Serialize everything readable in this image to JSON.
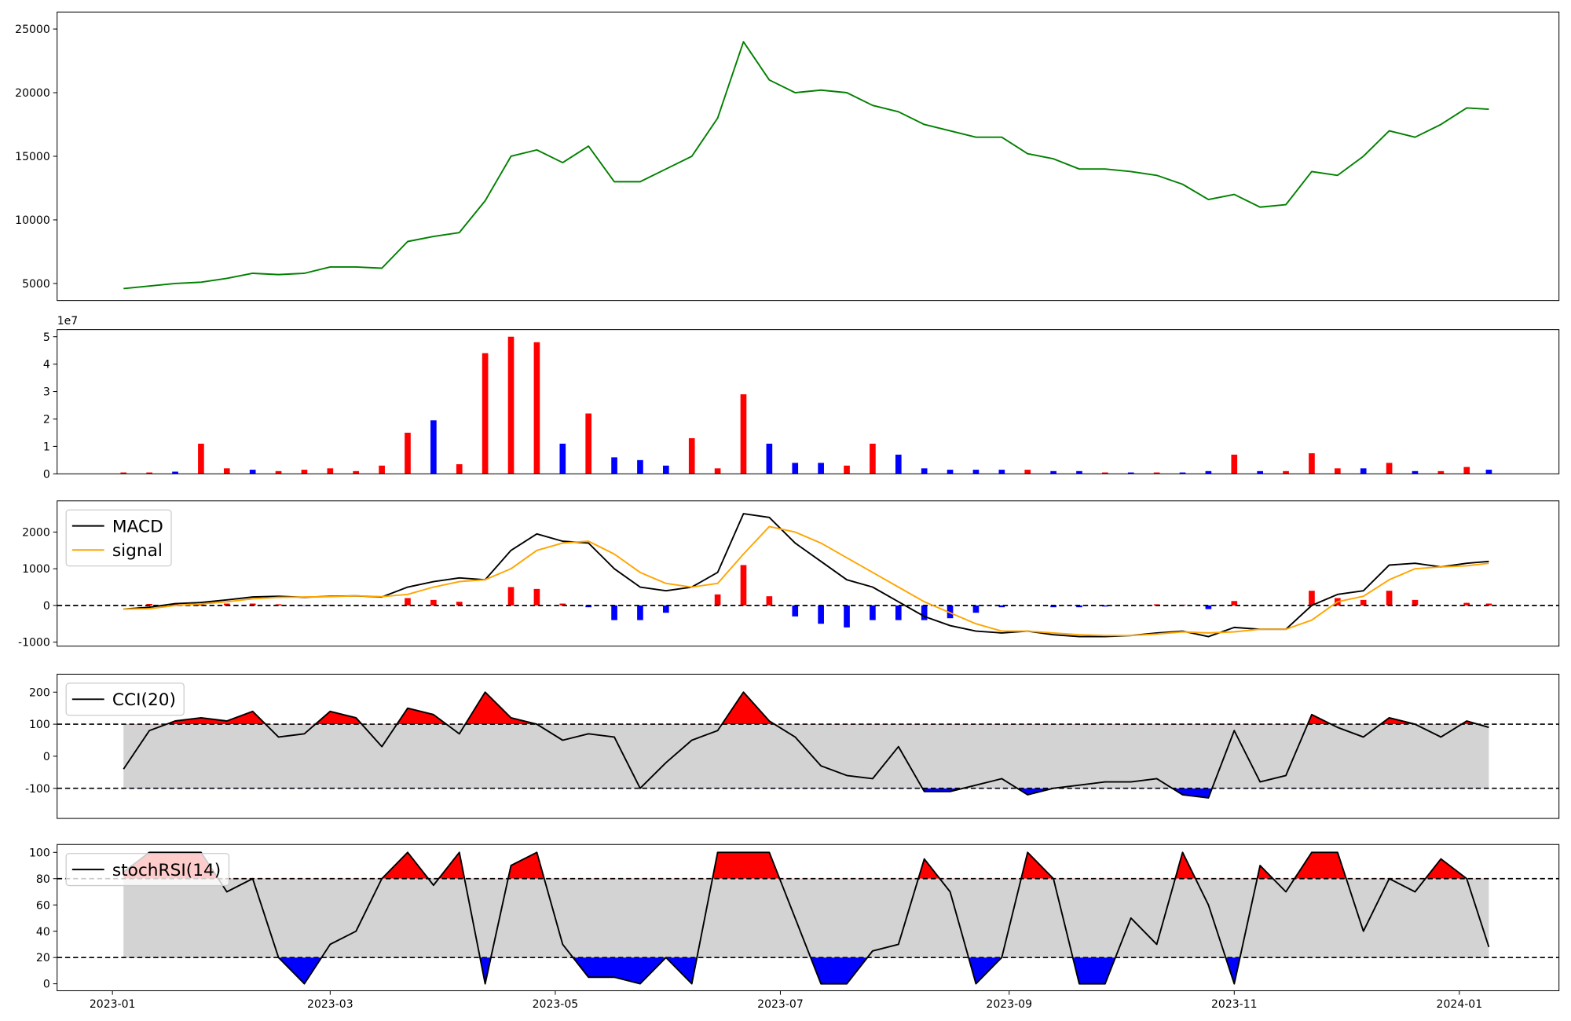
{
  "chart_data": [
    {
      "type": "line",
      "x": [
        3,
        10,
        17,
        24,
        31,
        38,
        45,
        52,
        59,
        66,
        73,
        80,
        87,
        94,
        101,
        108,
        115,
        122,
        129,
        136,
        143,
        150,
        157,
        164,
        171,
        178,
        185,
        192,
        199,
        206,
        213,
        220,
        227,
        234,
        241,
        248,
        255,
        262,
        269,
        276,
        283,
        290,
        297,
        304,
        311,
        318,
        325,
        332,
        339,
        346,
        353,
        360,
        367,
        373
      ],
      "series": [
        {
          "color": "#008000",
          "values": [
            4600,
            4800,
            5000,
            5100,
            5400,
            5800,
            5700,
            5800,
            6300,
            6300,
            6200,
            8300,
            8700,
            9000,
            11500,
            15000,
            15500,
            14500,
            15800,
            13000,
            13000,
            14000,
            15000,
            18000,
            24000,
            21000,
            20000,
            20200,
            20000,
            19000,
            18500,
            17500,
            17000,
            16500,
            16500,
            15200,
            14800,
            14000,
            14000,
            13800,
            13500,
            12800,
            11600,
            12000,
            11000,
            11200,
            13800,
            13500,
            15000,
            17000,
            16500,
            17500,
            18800,
            18700
          ]
        }
      ],
      "xlim": [
        -15,
        392
      ],
      "ylim": [
        3660,
        26340
      ],
      "yticks": [
        5000,
        10000,
        15000,
        20000,
        25000
      ]
    },
    {
      "type": "bar",
      "x": [
        3,
        10,
        17,
        24,
        31,
        38,
        45,
        52,
        59,
        66,
        73,
        80,
        87,
        94,
        101,
        108,
        115,
        122,
        129,
        136,
        143,
        150,
        157,
        164,
        171,
        178,
        185,
        192,
        199,
        206,
        213,
        220,
        227,
        234,
        241,
        248,
        255,
        262,
        269,
        276,
        283,
        290,
        297,
        304,
        311,
        318,
        325,
        332,
        339,
        346,
        353,
        360,
        367,
        373
      ],
      "values": [
        0.05,
        0.05,
        0.08,
        1.1,
        0.2,
        0.15,
        0.1,
        0.15,
        0.2,
        0.1,
        0.3,
        1.5,
        1.95,
        0.35,
        4.4,
        5.0,
        4.8,
        1.1,
        2.2,
        0.6,
        0.5,
        0.3,
        1.3,
        0.2,
        2.9,
        1.1,
        0.4,
        0.4,
        0.3,
        1.1,
        0.7,
        0.2,
        0.15,
        0.15,
        0.15,
        0.15,
        0.1,
        0.1,
        0.05,
        0.05,
        0.05,
        0.05,
        0.1,
        0.7,
        0.1,
        0.1,
        0.75,
        0.2,
        0.2,
        0.4,
        0.1,
        0.1,
        0.25,
        0.15
      ],
      "colors": [
        "#ff0000",
        "#ff0000",
        "#0000ff",
        "#ff0000",
        "#ff0000",
        "#0000ff",
        "#ff0000",
        "#ff0000",
        "#ff0000",
        "#ff0000",
        "#ff0000",
        "#ff0000",
        "#0000ff",
        "#ff0000",
        "#ff0000",
        "#ff0000",
        "#ff0000",
        "#0000ff",
        "#ff0000",
        "#0000ff",
        "#0000ff",
        "#0000ff",
        "#ff0000",
        "#ff0000",
        "#ff0000",
        "#0000ff",
        "#0000ff",
        "#0000ff",
        "#ff0000",
        "#ff0000",
        "#0000ff",
        "#0000ff",
        "#0000ff",
        "#0000ff",
        "#0000ff",
        "#ff0000",
        "#0000ff",
        "#0000ff",
        "#ff0000",
        "#0000ff",
        "#ff0000",
        "#0000ff",
        "#0000ff",
        "#ff0000",
        "#0000ff",
        "#ff0000",
        "#ff0000",
        "#ff0000",
        "#0000ff",
        "#ff0000",
        "#0000ff",
        "#ff0000",
        "#ff0000",
        "#0000ff"
      ],
      "offset_label": "1e7",
      "xlim": [
        -15,
        392
      ],
      "ylim": [
        0,
        5.26
      ],
      "yticks": [
        0,
        1,
        2,
        3,
        4,
        5
      ]
    },
    {
      "type": "macd",
      "x": [
        3,
        10,
        17,
        24,
        31,
        38,
        45,
        52,
        59,
        66,
        73,
        80,
        87,
        94,
        101,
        108,
        115,
        122,
        129,
        136,
        143,
        150,
        157,
        164,
        171,
        178,
        185,
        192,
        199,
        206,
        213,
        220,
        227,
        234,
        241,
        248,
        255,
        262,
        269,
        276,
        283,
        290,
        297,
        304,
        311,
        318,
        325,
        332,
        339,
        346,
        353,
        360,
        367,
        373
      ],
      "series": [
        {
          "name": "MACD",
          "color": "#000000",
          "values": [
            -100,
            -50,
            50,
            80,
            150,
            230,
            250,
            220,
            250,
            260,
            230,
            500,
            650,
            750,
            700,
            1500,
            1950,
            1750,
            1700,
            1000,
            500,
            400,
            500,
            900,
            2500,
            2400,
            1700,
            1200,
            700,
            500,
            100,
            -300,
            -550,
            -700,
            -750,
            -700,
            -800,
            -850,
            -850,
            -820,
            -750,
            -700,
            -850,
            -600,
            -650,
            -650,
            0,
            300,
            400,
            1100,
            1150,
            1050,
            1150,
            1200
          ]
        },
        {
          "name": "signal",
          "color": "#ffa500",
          "values": [
            -100,
            -90,
            0,
            40,
            100,
            180,
            220,
            230,
            240,
            260,
            240,
            300,
            500,
            650,
            700,
            1000,
            1500,
            1700,
            1750,
            1400,
            900,
            600,
            500,
            600,
            1400,
            2150,
            2000,
            1700,
            1300,
            900,
            500,
            100,
            -200,
            -500,
            -700,
            -700,
            -750,
            -800,
            -820,
            -820,
            -780,
            -720,
            -750,
            -720,
            -650,
            -650,
            -400,
            100,
            250,
            700,
            1000,
            1050,
            1080,
            1150
          ]
        }
      ],
      "histogram": {
        "values": [
          0,
          40,
          50,
          40,
          50,
          50,
          30,
          -10,
          10,
          0,
          -10,
          200,
          150,
          100,
          0,
          500,
          450,
          50,
          -50,
          -400,
          -400,
          -200,
          0,
          300,
          1100,
          250,
          -300,
          -500,
          -600,
          -400,
          -400,
          -400,
          -350,
          -200,
          -50,
          0,
          -50,
          -50,
          -30,
          0,
          30,
          20,
          -100,
          120,
          0,
          0,
          400,
          200,
          150,
          400,
          150,
          0,
          70,
          50
        ],
        "up_color": "#ff0000",
        "down_color": "#0000ff"
      },
      "hlines": [
        0
      ],
      "legend": "upper left",
      "xlim": [
        -15,
        392
      ],
      "ylim": [
        -1110,
        2850
      ],
      "yticks": [
        -1000,
        0,
        1000,
        2000
      ]
    },
    {
      "type": "oscillator",
      "x": [
        3,
        10,
        17,
        24,
        31,
        38,
        45,
        52,
        59,
        66,
        73,
        80,
        87,
        94,
        101,
        108,
        115,
        122,
        129,
        136,
        143,
        150,
        157,
        164,
        171,
        178,
        185,
        192,
        199,
        206,
        213,
        220,
        227,
        234,
        241,
        248,
        255,
        262,
        269,
        276,
        283,
        290,
        297,
        304,
        311,
        318,
        325,
        332,
        339,
        346,
        353,
        360,
        367,
        373
      ],
      "series": [
        {
          "name": "CCI(20)",
          "color": "#000000",
          "values": [
            -40,
            80,
            110,
            120,
            110,
            140,
            60,
            70,
            140,
            120,
            30,
            150,
            130,
            70,
            200,
            120,
            100,
            50,
            70,
            60,
            -100,
            -20,
            50,
            80,
            200,
            110,
            60,
            -30,
            -60,
            -70,
            30,
            -110,
            -110,
            -90,
            -70,
            -120,
            -100,
            -90,
            -80,
            -80,
            -70,
            -120,
            -130,
            80,
            -80,
            -60,
            130,
            90,
            60,
            120,
            100,
            60,
            110,
            90
          ]
        }
      ],
      "hlines": [
        100,
        -100
      ],
      "band_color": "#d3d3d3",
      "above_color": "#ff0000",
      "below_color": "#0000ff",
      "legend": "upper left",
      "xlim": [
        -15,
        392
      ],
      "ylim": [
        -194,
        256
      ],
      "yticks": [
        -100,
        0,
        100,
        200
      ]
    },
    {
      "type": "oscillator",
      "x": [
        3,
        10,
        17,
        24,
        31,
        38,
        45,
        52,
        59,
        66,
        73,
        80,
        87,
        94,
        101,
        108,
        115,
        122,
        129,
        136,
        143,
        150,
        157,
        164,
        171,
        178,
        185,
        192,
        199,
        206,
        213,
        220,
        227,
        234,
        241,
        248,
        255,
        262,
        269,
        276,
        283,
        290,
        297,
        304,
        311,
        318,
        325,
        332,
        339,
        346,
        353,
        360,
        367,
        373
      ],
      "series": [
        {
          "name": "stochRSI(14)",
          "color": "#000000",
          "values": [
            85,
            100,
            100,
            100,
            70,
            80,
            20,
            0,
            30,
            40,
            80,
            100,
            75,
            100,
            0,
            90,
            100,
            30,
            5,
            5,
            0,
            20,
            0,
            100,
            100,
            100,
            50,
            0,
            0,
            25,
            30,
            95,
            70,
            0,
            20,
            100,
            80,
            0,
            0,
            50,
            30,
            100,
            60,
            0,
            90,
            70,
            100,
            100,
            40,
            80,
            70,
            95,
            80,
            28
          ]
        }
      ],
      "hlines": [
        80,
        20
      ],
      "band_color": "#d3d3d3",
      "above_color": "#ff0000",
      "below_color": "#0000ff",
      "legend": "upper left",
      "xlim": [
        -15,
        392
      ],
      "ylim": [
        -5.3,
        106
      ],
      "yticks": [
        0,
        20,
        40,
        60,
        80,
        100
      ],
      "xticks": [
        {
          "value": 0,
          "label": "2023-01"
        },
        {
          "value": 59,
          "label": "2023-03"
        },
        {
          "value": 120,
          "label": "2023-05"
        },
        {
          "value": 181,
          "label": "2023-07"
        },
        {
          "value": 243,
          "label": "2023-09"
        },
        {
          "value": 304,
          "label": "2023-11"
        },
        {
          "value": 365,
          "label": "2024-01"
        }
      ]
    }
  ]
}
